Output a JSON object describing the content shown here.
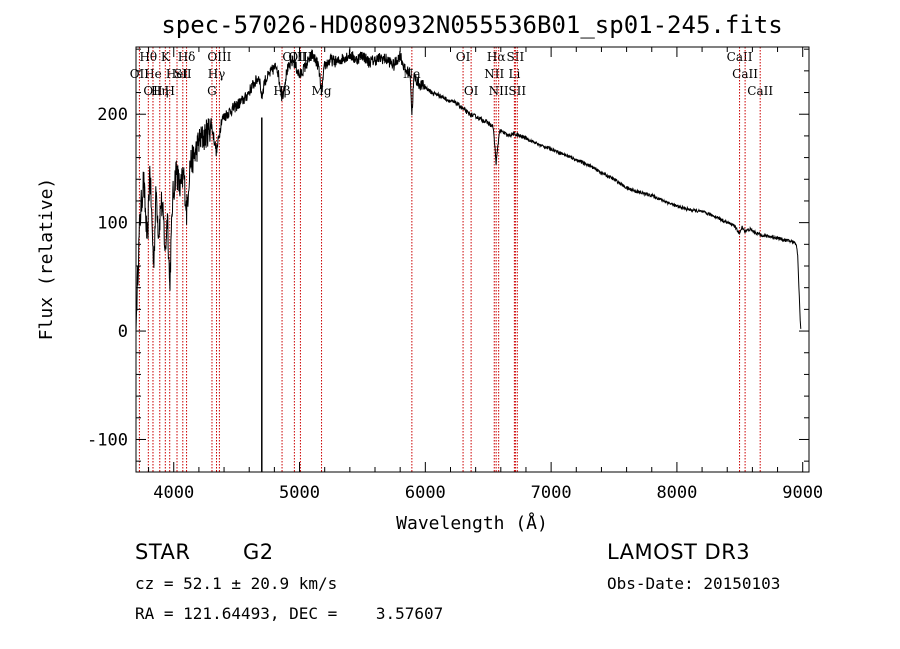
{
  "chart_data": {
    "type": "line",
    "title": "spec-57026-HD080932N055536B01_sp01-245.fits",
    "xlabel": "Wavelength (Å)",
    "ylabel": "Flux (relative)",
    "xlim": [
      3700,
      9050
    ],
    "ylim": [
      -130,
      262
    ],
    "xticks": [
      4000,
      5000,
      6000,
      7000,
      8000,
      9000
    ],
    "yticks": [
      -100,
      0,
      100,
      200
    ],
    "spectrum": {
      "x": [
        3700,
        3710,
        3730,
        3760,
        3790,
        3810,
        3840,
        3860,
        3880,
        3900,
        3920,
        3933,
        3950,
        3968,
        3990,
        4020,
        4050,
        4080,
        4102,
        4130,
        4160,
        4200,
        4250,
        4300,
        4340,
        4380,
        4420,
        4470,
        4520,
        4570,
        4620,
        4680,
        4700,
        4720,
        4780,
        4820,
        4861,
        4900,
        4950,
        5000,
        5050,
        5100,
        5150,
        5175,
        5200,
        5250,
        5300,
        5350,
        5400,
        5450,
        5500,
        5550,
        5600,
        5650,
        5700,
        5750,
        5800,
        5840,
        5880,
        5893,
        5910,
        5950,
        6000,
        6050,
        6100,
        6150,
        6200,
        6250,
        6300,
        6350,
        6400,
        6450,
        6500,
        6540,
        6563,
        6590,
        6620,
        6660,
        6700,
        6750,
        6800,
        6850,
        6900,
        6950,
        7000,
        7100,
        7200,
        7300,
        7400,
        7500,
        7600,
        7700,
        7800,
        7900,
        8000,
        8100,
        8200,
        8300,
        8400,
        8450,
        8498,
        8520,
        8542,
        8580,
        8620,
        8662,
        8700,
        8750,
        8800,
        8850,
        8900,
        8930,
        8950,
        8960,
        8970,
        8980,
        8985
      ],
      "y": [
        0,
        40,
        100,
        140,
        80,
        150,
        60,
        130,
        90,
        120,
        100,
        70,
        110,
        40,
        120,
        150,
        130,
        145,
        110,
        155,
        160,
        175,
        180,
        190,
        165,
        195,
        200,
        205,
        210,
        215,
        225,
        235,
        215,
        230,
        240,
        245,
        215,
        240,
        250,
        235,
        245,
        255,
        245,
        220,
        245,
        250,
        248,
        252,
        255,
        250,
        255,
        248,
        250,
        252,
        250,
        245,
        255,
        240,
        238,
        200,
        235,
        228,
        225,
        220,
        218,
        215,
        212,
        210,
        205,
        200,
        198,
        195,
        192,
        188,
        155,
        185,
        183,
        180,
        182,
        180,
        178,
        175,
        172,
        170,
        168,
        163,
        158,
        153,
        146,
        140,
        132,
        128,
        125,
        120,
        115,
        112,
        110,
        106,
        100,
        98,
        90,
        96,
        92,
        94,
        91,
        89,
        88,
        87,
        86,
        84,
        83,
        82,
        80,
        70,
        40,
        10,
        2
      ]
    },
    "spike": {
      "x": 4700,
      "y_top": 197,
      "y_bottom": -130
    },
    "lines": [
      {
        "x": 3798,
        "label": "Hθ",
        "row": 1
      },
      {
        "x": 3727,
        "label": "OII",
        "row": 2
      },
      {
        "x": 3835,
        "label": "He",
        "row": 2
      },
      {
        "x": 3835,
        "label": "OII",
        "row": 3
      },
      {
        "x": 3889,
        "label": "Hη",
        "row": 3
      },
      {
        "x": 3933,
        "label": "K",
        "row": 1
      },
      {
        "x": 3968,
        "label": "H",
        "row": 3
      },
      {
        "x": 4026,
        "label": "HeI",
        "row": 2
      },
      {
        "x": 4072,
        "label": "SII",
        "row": 2
      },
      {
        "x": 4102,
        "label": "Hδ",
        "row": 1
      },
      {
        "x": 4304,
        "label": "G",
        "row": 3
      },
      {
        "x": 4340,
        "label": "Hγ",
        "row": 2
      },
      {
        "x": 4363,
        "label": "OIII",
        "row": 1
      },
      {
        "x": 4861,
        "label": "Hβ",
        "row": 3
      },
      {
        "x": 4959,
        "label": "OIII",
        "row": 1
      },
      {
        "x": 5007,
        "label": "OIII",
        "row": 1
      },
      {
        "x": 5175,
        "label": "Mg",
        "row": 3
      },
      {
        "x": 5893,
        "label": "Na",
        "row": 2
      },
      {
        "x": 6300,
        "label": "OI",
        "row": 1
      },
      {
        "x": 6364,
        "label": "OI",
        "row": 3
      },
      {
        "x": 6548,
        "label": "NII",
        "row": 2
      },
      {
        "x": 6563,
        "label": "Hα",
        "row": 1
      },
      {
        "x": 6583,
        "label": "NII",
        "row": 3
      },
      {
        "x": 6708,
        "label": "Li",
        "row": 2
      },
      {
        "x": 6716,
        "label": "SII",
        "row": 1
      },
      {
        "x": 6731,
        "label": "SII",
        "row": 3
      },
      {
        "x": 8498,
        "label": "CaII",
        "row": 1
      },
      {
        "x": 8542,
        "label": "CaII",
        "row": 2
      },
      {
        "x": 8662,
        "label": "CaII",
        "row": 3
      }
    ],
    "colors": {
      "spectrum": "#000000",
      "lines": "#cc0000",
      "axes": "#000000"
    }
  },
  "info": {
    "object_class": "STAR",
    "subclass": "G2",
    "survey": "LAMOST DR3",
    "cz": "cz = 52.1 ± 20.9 km/s",
    "obs_date": "Obs-Date: 20150103",
    "coords": "RA = 121.64493, DEC =    3.57607"
  }
}
